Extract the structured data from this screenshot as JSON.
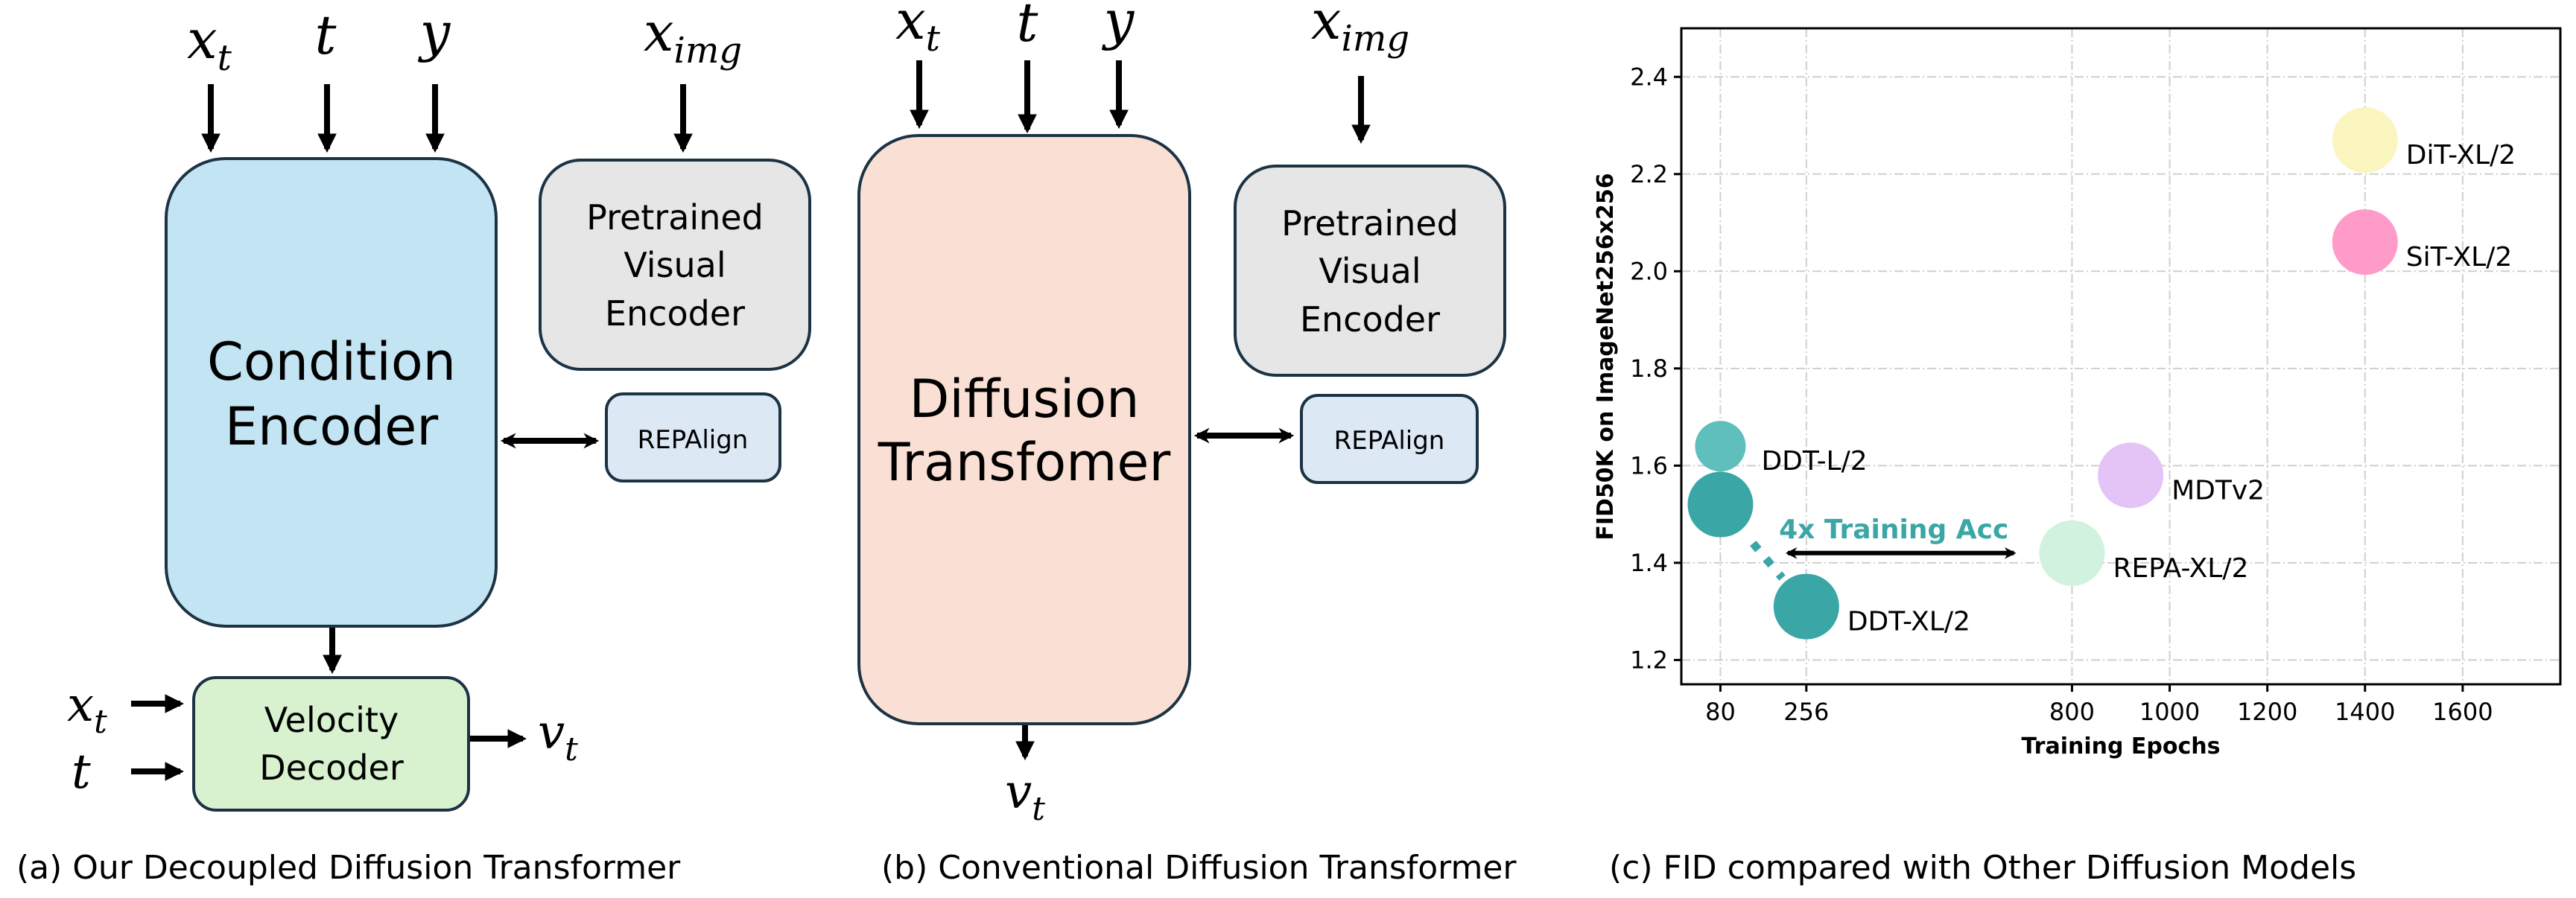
{
  "panel_a": {
    "inputs": [
      {
        "base": "x",
        "sub": "t"
      },
      {
        "base": "t",
        "sub": ""
      },
      {
        "base": "y",
        "sub": ""
      }
    ],
    "image_input": {
      "base": "x",
      "sub": "img"
    },
    "condition_encoder": [
      "Condition",
      "Encoder"
    ],
    "pretrained_encoder": [
      "Pretrained",
      "Visual",
      "Encoder"
    ],
    "repalign": "REPAlign",
    "velocity_decoder": [
      "Velocity",
      "Decoder"
    ],
    "decoder_inputs": [
      {
        "base": "x",
        "sub": "t"
      },
      {
        "base": "t",
        "sub": ""
      }
    ],
    "output": {
      "base": "v",
      "sub": "t"
    },
    "caption": "(a) Our Decoupled Diffusion Transformer",
    "colors": {
      "condition_encoder": "#C2E4F3",
      "pretrained": "#E6E6E6",
      "repalign": "#DCE9F5",
      "velocity_decoder": "#D8F2D0"
    }
  },
  "panel_b": {
    "inputs": [
      {
        "base": "x",
        "sub": "t"
      },
      {
        "base": "t",
        "sub": ""
      },
      {
        "base": "y",
        "sub": ""
      }
    ],
    "image_input": {
      "base": "x",
      "sub": "img"
    },
    "diffusion_transformer": [
      "Diffusion",
      "Transfomer"
    ],
    "pretrained_encoder": [
      "Pretrained",
      "Visual",
      "Encoder"
    ],
    "repalign": "REPAlign",
    "output": {
      "base": "v",
      "sub": "t"
    },
    "caption": "(b) Conventional Diffusion Transformer",
    "colors": {
      "diffusion_transformer": "#FAE0D4",
      "pretrained": "#E6E6E6",
      "repalign": "#DCE9F5"
    }
  },
  "panel_c": {
    "caption": "(c) FID compared with Other Diffusion Models"
  },
  "chart_data": {
    "type": "scatter",
    "title": "",
    "xlabel": "Training Epochs",
    "ylabel": "FID50K on ImageNet256x256",
    "xlim": [
      0,
      1800
    ],
    "ylim": [
      1.15,
      2.5
    ],
    "xticks": [
      80,
      256,
      800,
      1000,
      1200,
      1400,
      1600
    ],
    "yticks": [
      "1.2",
      "1.4",
      "1.6",
      "1.8",
      "2.0",
      "2.2",
      "2.4"
    ],
    "grid": true,
    "points": [
      {
        "label": "DDT-L/2",
        "x": 80,
        "y": 1.64,
        "color": "#5FBFBD"
      },
      {
        "label": "",
        "x": 80,
        "y": 1.52,
        "color": "#3AA6A5"
      },
      {
        "label": "DDT-XL/2",
        "x": 256,
        "y": 1.31,
        "color": "#3AA6A5"
      },
      {
        "label": "REPA-XL/2",
        "x": 800,
        "y": 1.42,
        "color": "#D1F2DE"
      },
      {
        "label": "MDTv2",
        "x": 920,
        "y": 1.58,
        "color": "#E4C3F7"
      },
      {
        "label": "SiT-XL/2",
        "x": 1400,
        "y": 2.06,
        "color": "#FF9BC8"
      },
      {
        "label": "DiT-XL/2",
        "x": 1400,
        "y": 2.27,
        "color": "#FBF5C0"
      }
    ],
    "annotation": {
      "text": "4x Training Acc",
      "color": "#3AA6A5",
      "arrow_from": 218,
      "arrow_to": 681,
      "arrow_y": 1.42
    }
  }
}
